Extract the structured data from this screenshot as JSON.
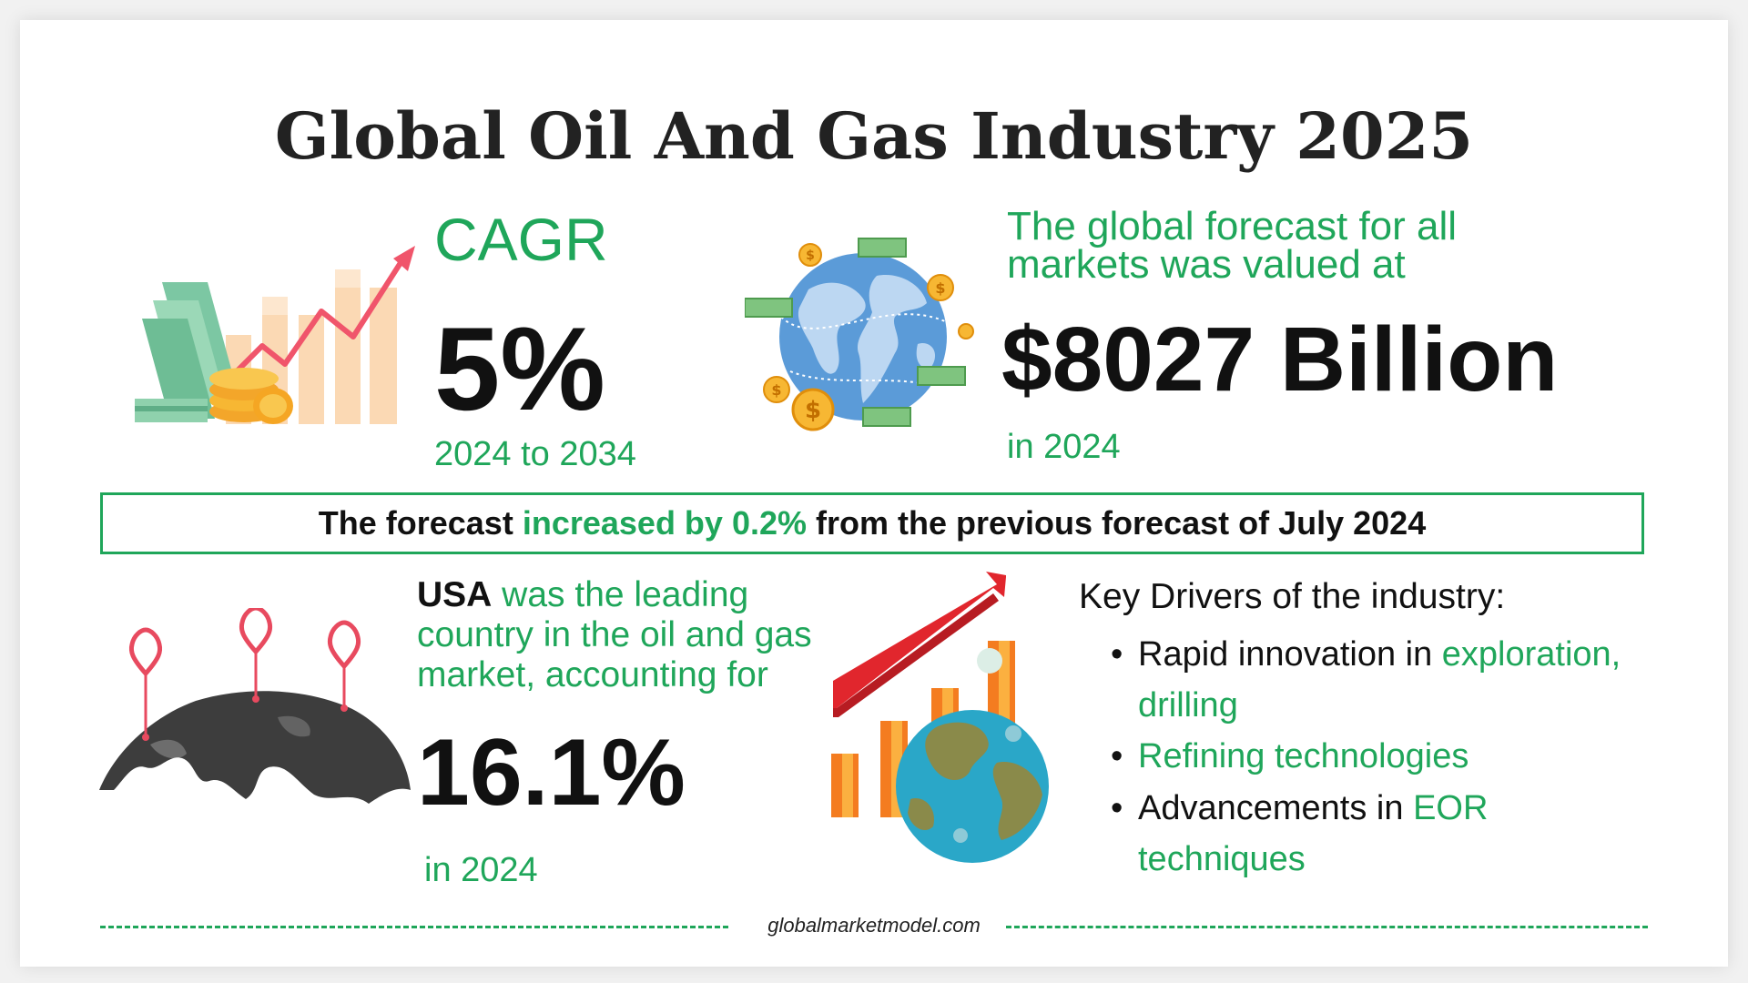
{
  "title": "Global Oil And Gas Industry 2025",
  "cagr": {
    "label": "CAGR",
    "value": "5%",
    "period": "2024 to 2034"
  },
  "forecast": {
    "label": "The global forecast for all markets was valued at",
    "value": "$8027 Billion",
    "year": "in 2024"
  },
  "banner": {
    "part1": "The forecast ",
    "highlight": "increased by 0.2%",
    "part2": " from the previous forecast of July 2024"
  },
  "usa": {
    "country": "USA",
    "text": " was the leading country in the oil and gas market, accounting for",
    "value": "16.1%",
    "year": "in 2024"
  },
  "drivers": {
    "heading": "Key Drivers of the industry:",
    "items": [
      {
        "plain": "Rapid innovation in ",
        "highlight": "exploration, drilling"
      },
      {
        "plain": "",
        "highlight": "Refining technologies"
      },
      {
        "plain": "Advancements in ",
        "highlight": "EOR techniques"
      }
    ]
  },
  "footer": "globalmarketmodel.com",
  "colors": {
    "accent_green": "#1fa65a",
    "text_dark": "#111111"
  },
  "icons": [
    "money-growth-chart-icon",
    "globe-money-icon",
    "world-map-pins-icon",
    "growth-globe-chart-icon"
  ]
}
